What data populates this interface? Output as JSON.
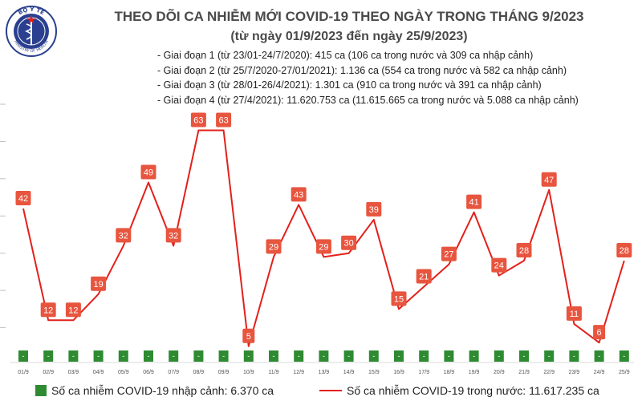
{
  "header": {
    "logo_text_top": "BỘ Y TẾ",
    "logo_text_bottom": "MINISTRY OF HEALTH",
    "title": "THEO DÕI CA NHIỄM MỚI COVID-19 THEO NGÀY TRONG THÁNG 9/2023",
    "subtitle": "(từ ngày 01/9/2023 đến ngày 25/9/2023)"
  },
  "notes": [
    "- Giai đoạn 1 (từ 23/01-24/7/2020): 415 ca (106 ca trong nước và 309 ca nhập cảnh)",
    "- Giai đoạn 2 (từ 25/7/2020-27/01/2021): 1.136 ca (554 ca trong nước và 582 ca nhập cảnh)",
    "- Giai đoạn 3 (từ 28/01-26/4/2021): 1.301 ca (910 ca trong nước và 391 ca nhập cảnh)",
    "- Giai đoạn 4 (từ 27/4/2021): 11.620.753 ca (11.615.665 ca trong nước và 5.088 ca nhập cảnh)"
  ],
  "legend": {
    "imported": "Số ca nhiễm COVID-19 nhập cảnh: 6.370 ca",
    "domestic": "Số ca nhiễm COVID-19 trong nước: 11.617.235 ca"
  },
  "colors": {
    "line": "#e3201b",
    "label_bg": "#e8553f",
    "bar": "#2e8b32",
    "title": "#4a4a4a"
  },
  "chart_data": {
    "type": "line",
    "categories": [
      "01/9",
      "02/9",
      "03/9",
      "04/9",
      "05/9",
      "06/9",
      "07/9",
      "08/9",
      "09/9",
      "10/9",
      "11/9",
      "12/9",
      "13/9",
      "14/9",
      "15/9",
      "16/9",
      "17/9",
      "18/9",
      "19/9",
      "20/9",
      "21/9",
      "22/9",
      "23/9",
      "24/9",
      "25/9"
    ],
    "series": [
      {
        "values": [
          42,
          12,
          12,
          19,
          32,
          49,
          32,
          63,
          63,
          5,
          29,
          43,
          29,
          30,
          39,
          15,
          21,
          27,
          41,
          24,
          28,
          47,
          11,
          6,
          28
        ]
      },
      {
        "values": [
          0,
          0,
          0,
          0,
          0,
          0,
          0,
          0,
          0,
          0,
          0,
          0,
          0,
          0,
          0,
          0,
          0,
          0,
          0,
          0,
          0,
          0,
          0,
          0,
          0
        ],
        "bar_labels": [
          "-",
          "-",
          "-",
          "-",
          "-",
          "-",
          "-",
          "-",
          "-",
          "-",
          "-",
          "-",
          "-",
          "-",
          "-",
          "-",
          "-",
          "-",
          "-",
          "-",
          "-",
          "-",
          "-",
          "-",
          "-"
        ]
      }
    ],
    "ylim": [
      0,
      70
    ],
    "grid": true
  }
}
